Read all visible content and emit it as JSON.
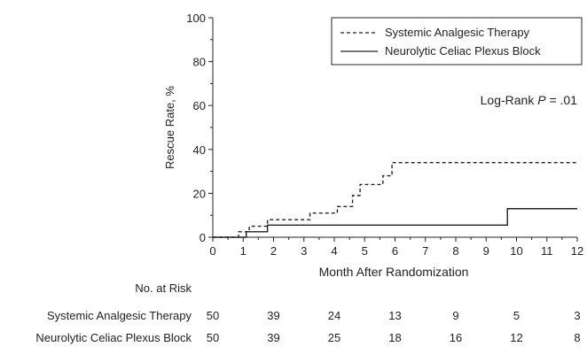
{
  "chart_data": {
    "type": "line",
    "xlabel": "Month After Randomization",
    "ylabel": "Rescue Rate, %",
    "xlim": [
      0,
      12
    ],
    "ylim": [
      0,
      100
    ],
    "xticks": [
      "0",
      "1",
      "2",
      "3",
      "4",
      "5",
      "6",
      "7",
      "8",
      "9",
      "10",
      "11",
      "12"
    ],
    "yticks": [
      "0",
      "20",
      "40",
      "60",
      "80",
      "100"
    ],
    "legend_position": "top-right",
    "annotation_prefix": "Log-Rank ",
    "annotation_p": "P",
    "annotation_suffix": " = .01",
    "series": [
      {
        "name": "Systemic Analgesic Therapy",
        "style": "dashed",
        "color": "#222222",
        "steps": [
          [
            0,
            0
          ],
          [
            0.85,
            2.5
          ],
          [
            1.2,
            5
          ],
          [
            1.8,
            8
          ],
          [
            3.2,
            11
          ],
          [
            4.1,
            14
          ],
          [
            4.6,
            19
          ],
          [
            4.85,
            24
          ],
          [
            5.6,
            28
          ],
          [
            5.9,
            34
          ],
          [
            12,
            34
          ]
        ]
      },
      {
        "name": "Neurolytic Celiac Plexus Block",
        "style": "solid",
        "color": "#222222",
        "steps": [
          [
            0,
            0
          ],
          [
            1.1,
            2.5
          ],
          [
            1.8,
            5.5
          ],
          [
            9.7,
            13
          ],
          [
            12,
            13
          ]
        ]
      }
    ]
  },
  "risk_table": {
    "title": "No. at Risk",
    "rows": [
      {
        "label": "Systemic Analgesic Therapy",
        "values": [
          "50",
          "39",
          "24",
          "13",
          "9",
          "5",
          "3"
        ]
      },
      {
        "label": "Neurolytic Celiac Plexus Block",
        "values": [
          "50",
          "39",
          "25",
          "18",
          "16",
          "12",
          "8"
        ]
      }
    ]
  }
}
